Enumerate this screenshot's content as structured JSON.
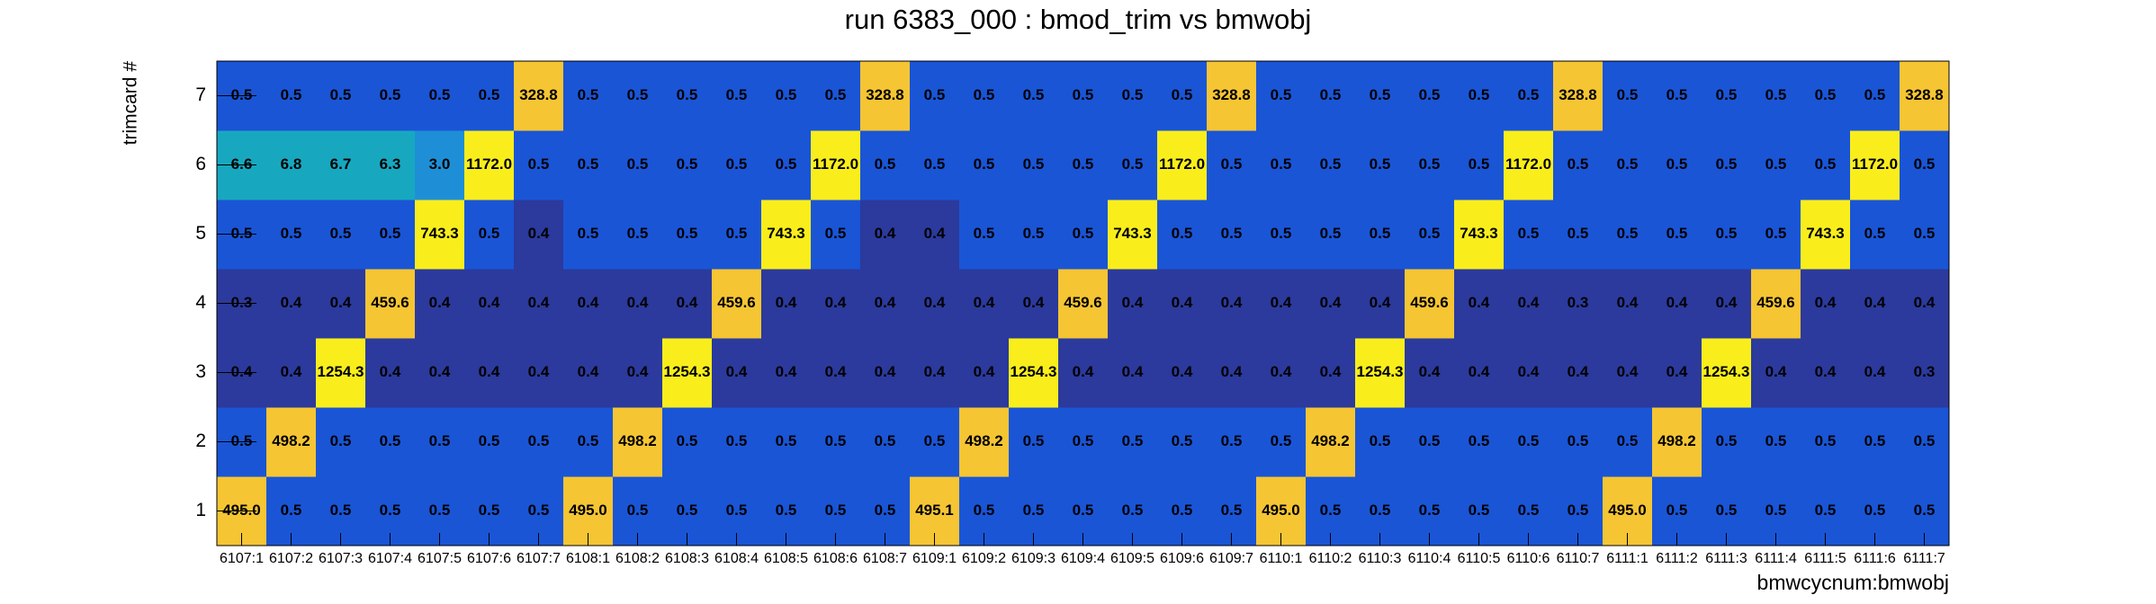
{
  "chart_data": {
    "type": "heatmap",
    "title": "run 6383_000 : bmod_trim vs bmwobj",
    "x_label": "bmwcycnum:bmwobj",
    "y_label": "trimcard #",
    "categories": [
      "6107:1",
      "6107:2",
      "6107:3",
      "6107:4",
      "6107:5",
      "6107:6",
      "6107:7",
      "6108:1",
      "6108:2",
      "6108:3",
      "6108:4",
      "6108:5",
      "6108:6",
      "6108:7",
      "6109:1",
      "6109:2",
      "6109:3",
      "6109:4",
      "6109:5",
      "6109:6",
      "6109:7",
      "6110:1",
      "6110:2",
      "6110:3",
      "6110:4",
      "6110:5",
      "6110:6",
      "6110:7",
      "6111:1",
      "6111:2",
      "6111:3",
      "6111:4",
      "6111:5",
      "6111:6",
      "6111:7"
    ],
    "y_categories": [
      1,
      2,
      3,
      4,
      5,
      6,
      7
    ],
    "z": [
      [
        495.0,
        0.5,
        0.5,
        0.5,
        0.5,
        0.5,
        0.5,
        495.0,
        0.5,
        0.5,
        0.5,
        0.5,
        0.5,
        0.5,
        495.1,
        0.5,
        0.5,
        0.5,
        0.5,
        0.5,
        0.5,
        495.0,
        0.5,
        0.5,
        0.5,
        0.5,
        0.5,
        0.5,
        495.0,
        0.5,
        0.5,
        0.5,
        0.5,
        0.5,
        0.5
      ],
      [
        0.5,
        498.2,
        0.5,
        0.5,
        0.5,
        0.5,
        0.5,
        0.5,
        498.2,
        0.5,
        0.5,
        0.5,
        0.5,
        0.5,
        0.5,
        498.2,
        0.5,
        0.5,
        0.5,
        0.5,
        0.5,
        0.5,
        498.2,
        0.5,
        0.5,
        0.5,
        0.5,
        0.5,
        0.5,
        498.2,
        0.5,
        0.5,
        0.5,
        0.5,
        0.5
      ],
      [
        0.4,
        0.4,
        1254.3,
        0.4,
        0.4,
        0.4,
        0.4,
        0.4,
        0.4,
        1254.3,
        0.4,
        0.4,
        0.4,
        0.4,
        0.4,
        0.4,
        1254.3,
        0.4,
        0.4,
        0.4,
        0.4,
        0.4,
        0.4,
        1254.3,
        0.4,
        0.4,
        0.4,
        0.4,
        0.4,
        0.4,
        1254.3,
        0.4,
        0.4,
        0.4,
        0.3
      ],
      [
        0.3,
        0.4,
        0.4,
        459.6,
        0.4,
        0.4,
        0.4,
        0.4,
        0.4,
        0.4,
        459.6,
        0.4,
        0.4,
        0.4,
        0.4,
        0.4,
        0.4,
        459.6,
        0.4,
        0.4,
        0.4,
        0.4,
        0.4,
        0.4,
        459.6,
        0.4,
        0.4,
        0.3,
        0.4,
        0.4,
        0.4,
        459.6,
        0.4,
        0.4,
        0.4
      ],
      [
        0.5,
        0.5,
        0.5,
        0.5,
        743.3,
        0.5,
        0.4,
        0.5,
        0.5,
        0.5,
        0.5,
        743.3,
        0.5,
        0.4,
        0.4,
        0.5,
        0.5,
        0.5,
        743.3,
        0.5,
        0.5,
        0.5,
        0.5,
        0.5,
        0.5,
        743.3,
        0.5,
        0.5,
        0.5,
        0.5,
        0.5,
        0.5,
        743.3,
        0.5,
        0.5
      ],
      [
        6.6,
        6.8,
        6.7,
        6.3,
        3.0,
        1172.0,
        0.5,
        0.5,
        0.5,
        0.5,
        0.5,
        0.5,
        1172.0,
        0.5,
        0.5,
        0.5,
        0.5,
        0.5,
        0.5,
        1172.0,
        0.5,
        0.5,
        0.5,
        0.5,
        0.5,
        0.5,
        1172.0,
        0.5,
        0.5,
        0.5,
        0.5,
        0.5,
        0.5,
        1172.0,
        0.5
      ],
      [
        0.5,
        0.5,
        0.5,
        0.5,
        0.5,
        0.5,
        328.8,
        0.5,
        0.5,
        0.5,
        0.5,
        0.5,
        0.5,
        328.8,
        0.5,
        0.5,
        0.5,
        0.5,
        0.5,
        0.5,
        328.8,
        0.5,
        0.5,
        0.5,
        0.5,
        0.5,
        0.5,
        328.8,
        0.5,
        0.5,
        0.5,
        0.5,
        0.5,
        0.5,
        328.8
      ]
    ],
    "value_labels": [
      [
        "495.0",
        "0.5",
        "0.5",
        "0.5",
        "0.5",
        "0.5",
        "0.5",
        "495.0",
        "0.5",
        "0.5",
        "0.5",
        "0.5",
        "0.5",
        "0.5",
        "495.1",
        "0.5",
        "0.5",
        "0.5",
        "0.5",
        "0.5",
        "0.5",
        "495.0",
        "0.5",
        "0.5",
        "0.5",
        "0.5",
        "0.5",
        "0.5",
        "495.0",
        "0.5",
        "0.5",
        "0.5",
        "0.5",
        "0.5",
        "0.5"
      ],
      [
        "0.5",
        "498.2",
        "0.5",
        "0.5",
        "0.5",
        "0.5",
        "0.5",
        "0.5",
        "498.2",
        "0.5",
        "0.5",
        "0.5",
        "0.5",
        "0.5",
        "0.5",
        "498.2",
        "0.5",
        "0.5",
        "0.5",
        "0.5",
        "0.5",
        "0.5",
        "498.2",
        "0.5",
        "0.5",
        "0.5",
        "0.5",
        "0.5",
        "0.5",
        "498.2",
        "0.5",
        "0.5",
        "0.5",
        "0.5",
        "0.5"
      ],
      [
        "0.4",
        "0.4",
        "1254.3",
        "0.4",
        "0.4",
        "0.4",
        "0.4",
        "0.4",
        "0.4",
        "1254.3",
        "0.4",
        "0.4",
        "0.4",
        "0.4",
        "0.4",
        "0.4",
        "1254.3",
        "0.4",
        "0.4",
        "0.4",
        "0.4",
        "0.4",
        "0.4",
        "1254.3",
        "0.4",
        "0.4",
        "0.4",
        "0.4",
        "0.4",
        "0.4",
        "1254.3",
        "0.4",
        "0.4",
        "0.4",
        "0.3"
      ],
      [
        "0.3",
        "0.4",
        "0.4",
        "459.6",
        "0.4",
        "0.4",
        "0.4",
        "0.4",
        "0.4",
        "0.4",
        "459.6",
        "0.4",
        "0.4",
        "0.4",
        "0.4",
        "0.4",
        "0.4",
        "459.6",
        "0.4",
        "0.4",
        "0.4",
        "0.4",
        "0.4",
        "0.4",
        "459.6",
        "0.4",
        "0.4",
        "0.3",
        "0.4",
        "0.4",
        "0.4",
        "459.6",
        "0.4",
        "0.4",
        "0.4"
      ],
      [
        "0.5",
        "0.5",
        "0.5",
        "0.5",
        "743.3",
        "0.5",
        "0.4",
        "0.5",
        "0.5",
        "0.5",
        "0.5",
        "743.3",
        "0.5",
        "0.4",
        "0.4",
        "0.5",
        "0.5",
        "0.5",
        "743.3",
        "0.5",
        "0.5",
        "0.5",
        "0.5",
        "0.5",
        "0.5",
        "743.3",
        "0.5",
        "0.5",
        "0.5",
        "0.5",
        "0.5",
        "0.5",
        "743.3",
        "0.5",
        "0.5"
      ],
      [
        "6.6",
        "6.8",
        "6.7",
        "6.3",
        "3.0",
        "1172.0",
        "0.5",
        "0.5",
        "0.5",
        "0.5",
        "0.5",
        "0.5",
        "1172.0",
        "0.5",
        "0.5",
        "0.5",
        "0.5",
        "0.5",
        "0.5",
        "1172.0",
        "0.5",
        "0.5",
        "0.5",
        "0.5",
        "0.5",
        "0.5",
        "1172.0",
        "0.5",
        "0.5",
        "0.5",
        "0.5",
        "0.5",
        "0.5",
        "1172.0",
        "0.5"
      ],
      [
        "0.5",
        "0.5",
        "0.5",
        "0.5",
        "0.5",
        "0.5",
        "328.8",
        "0.5",
        "0.5",
        "0.5",
        "0.5",
        "0.5",
        "0.5",
        "328.8",
        "0.5",
        "0.5",
        "0.5",
        "0.5",
        "0.5",
        "0.5",
        "328.8",
        "0.5",
        "0.5",
        "0.5",
        "0.5",
        "0.5",
        "0.5",
        "328.8",
        "0.5",
        "0.5",
        "0.5",
        "0.5",
        "0.5",
        "0.5",
        "328.8"
      ]
    ],
    "color_stops": [
      [
        0,
        "#2b3a9c"
      ],
      [
        0.45,
        "#1a55d6"
      ],
      [
        2,
        "#1e8fd6"
      ],
      [
        5,
        "#17a8c0"
      ],
      [
        100,
        "#f5c533"
      ],
      [
        700,
        "#f9ee1c"
      ]
    ]
  }
}
